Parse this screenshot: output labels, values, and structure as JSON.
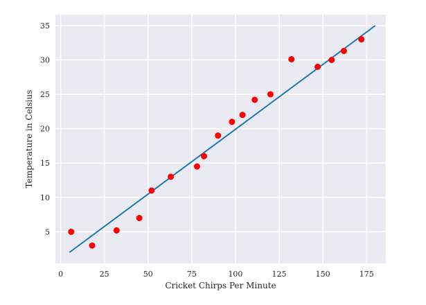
{
  "chart_data": {
    "type": "scatter",
    "title": "",
    "xlabel": "Cricket Chirps Per Minute",
    "ylabel": "Temperature in Celsius",
    "xlim": [
      -3,
      186
    ],
    "ylim": [
      0.4,
      36.6
    ],
    "x_ticks": [
      0,
      25,
      50,
      75,
      100,
      125,
      150,
      175
    ],
    "y_ticks": [
      5,
      10,
      15,
      20,
      25,
      30,
      35
    ],
    "grid": true,
    "legend": "none",
    "colors": {
      "background": "#eaeaf2",
      "grid": "#ffffff",
      "points": "#ff0000",
      "fit_line": "#1f77b4"
    },
    "series": [
      {
        "kind": "points",
        "x": [
          6,
          18,
          32,
          45,
          52,
          63,
          78,
          82,
          90,
          98,
          104,
          111,
          120,
          132,
          147,
          155,
          162,
          172
        ],
        "y": [
          5.0,
          3.0,
          5.2,
          7.0,
          11.0,
          13.0,
          14.5,
          16.0,
          19.0,
          21.0,
          22.0,
          24.2,
          25.0,
          30.1,
          29.0,
          30.0,
          31.3,
          33.0
        ]
      },
      {
        "kind": "line",
        "x": [
          5,
          180
        ],
        "y": [
          2.0,
          35.0
        ]
      }
    ]
  }
}
